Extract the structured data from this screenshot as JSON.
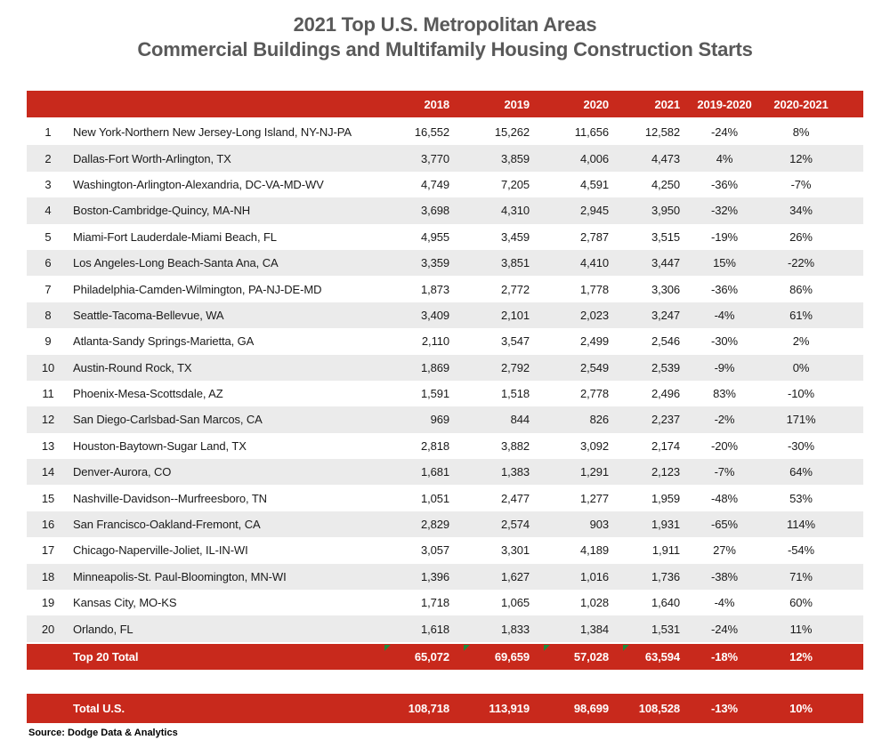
{
  "title": {
    "line1": "2021 Top U.S. Metropolitan Areas",
    "line2": "Commercial Buildings and Multifamily Housing Construction Starts"
  },
  "chart_data": {
    "type": "table",
    "title": "2021 Top U.S. Metropolitan Areas Commercial Buildings and Multifamily Housing Construction Starts",
    "columns": [
      "2018",
      "2019",
      "2020",
      "2021",
      "2019-2020",
      "2020-2021"
    ],
    "rows": [
      {
        "rank": "1",
        "metro": "New York-Northern New Jersey-Long Island, NY-NJ-PA",
        "values": [
          "16,552",
          "15,262",
          "11,656",
          "12,582",
          "-24%",
          "8%"
        ]
      },
      {
        "rank": "2",
        "metro": "Dallas-Fort Worth-Arlington, TX",
        "values": [
          "3,770",
          "3,859",
          "4,006",
          "4,473",
          "4%",
          "12%"
        ]
      },
      {
        "rank": "3",
        "metro": "Washington-Arlington-Alexandria, DC-VA-MD-WV",
        "values": [
          "4,749",
          "7,205",
          "4,591",
          "4,250",
          "-36%",
          "-7%"
        ]
      },
      {
        "rank": "4",
        "metro": "Boston-Cambridge-Quincy, MA-NH",
        "values": [
          "3,698",
          "4,310",
          "2,945",
          "3,950",
          "-32%",
          "34%"
        ]
      },
      {
        "rank": "5",
        "metro": "Miami-Fort Lauderdale-Miami Beach, FL",
        "values": [
          "4,955",
          "3,459",
          "2,787",
          "3,515",
          "-19%",
          "26%"
        ]
      },
      {
        "rank": "6",
        "metro": "Los Angeles-Long Beach-Santa Ana, CA",
        "values": [
          "3,359",
          "3,851",
          "4,410",
          "3,447",
          "15%",
          "-22%"
        ]
      },
      {
        "rank": "7",
        "metro": "Philadelphia-Camden-Wilmington, PA-NJ-DE-MD",
        "values": [
          "1,873",
          "2,772",
          "1,778",
          "3,306",
          "-36%",
          "86%"
        ]
      },
      {
        "rank": "8",
        "metro": "Seattle-Tacoma-Bellevue, WA",
        "values": [
          "3,409",
          "2,101",
          "2,023",
          "3,247",
          "-4%",
          "61%"
        ]
      },
      {
        "rank": "9",
        "metro": "Atlanta-Sandy Springs-Marietta, GA",
        "values": [
          "2,110",
          "3,547",
          "2,499",
          "2,546",
          "-30%",
          "2%"
        ]
      },
      {
        "rank": "10",
        "metro": "Austin-Round Rock, TX",
        "values": [
          "1,869",
          "2,792",
          "2,549",
          "2,539",
          "-9%",
          "0%"
        ]
      },
      {
        "rank": "11",
        "metro": "Phoenix-Mesa-Scottsdale, AZ",
        "values": [
          "1,591",
          "1,518",
          "2,778",
          "2,496",
          "83%",
          "-10%"
        ]
      },
      {
        "rank": "12",
        "metro": "San Diego-Carlsbad-San Marcos, CA",
        "values": [
          "969",
          "844",
          "826",
          "2,237",
          "-2%",
          "171%"
        ]
      },
      {
        "rank": "13",
        "metro": "Houston-Baytown-Sugar Land, TX",
        "values": [
          "2,818",
          "3,882",
          "3,092",
          "2,174",
          "-20%",
          "-30%"
        ]
      },
      {
        "rank": "14",
        "metro": "Denver-Aurora, CO",
        "values": [
          "1,681",
          "1,383",
          "1,291",
          "2,123",
          "-7%",
          "64%"
        ]
      },
      {
        "rank": "15",
        "metro": "Nashville-Davidson--Murfreesboro, TN",
        "values": [
          "1,051",
          "2,477",
          "1,277",
          "1,959",
          "-48%",
          "53%"
        ]
      },
      {
        "rank": "16",
        "metro": "San Francisco-Oakland-Fremont, CA",
        "values": [
          "2,829",
          "2,574",
          "903",
          "1,931",
          "-65%",
          "114%"
        ]
      },
      {
        "rank": "17",
        "metro": "Chicago-Naperville-Joliet, IL-IN-WI",
        "values": [
          "3,057",
          "3,301",
          "4,189",
          "1,911",
          "27%",
          "-54%"
        ]
      },
      {
        "rank": "18",
        "metro": "Minneapolis-St. Paul-Bloomington, MN-WI",
        "values": [
          "1,396",
          "1,627",
          "1,016",
          "1,736",
          "-38%",
          "71%"
        ]
      },
      {
        "rank": "19",
        "metro": "Kansas City, MO-KS",
        "values": [
          "1,718",
          "1,065",
          "1,028",
          "1,640",
          "-4%",
          "60%"
        ]
      },
      {
        "rank": "20",
        "metro": "Orlando, FL",
        "values": [
          "1,618",
          "1,833",
          "1,384",
          "1,531",
          "-24%",
          "11%"
        ]
      }
    ],
    "top20_total": {
      "label": "Top 20 Total",
      "values": [
        "65,072",
        "69,659",
        "57,028",
        "63,594",
        "-18%",
        "12%"
      ]
    },
    "total_us": {
      "label": "Total U.S.",
      "values": [
        "108,718",
        "113,919",
        "98,699",
        "108,528",
        "-13%",
        "10%"
      ]
    }
  },
  "source": "Source: Dodge Data & Analytics",
  "colors": {
    "accent_red": "#C8291C",
    "row_alt_gray": "#EBEBEB",
    "title_gray": "#595959",
    "flag_green": "#1E8C3C"
  }
}
